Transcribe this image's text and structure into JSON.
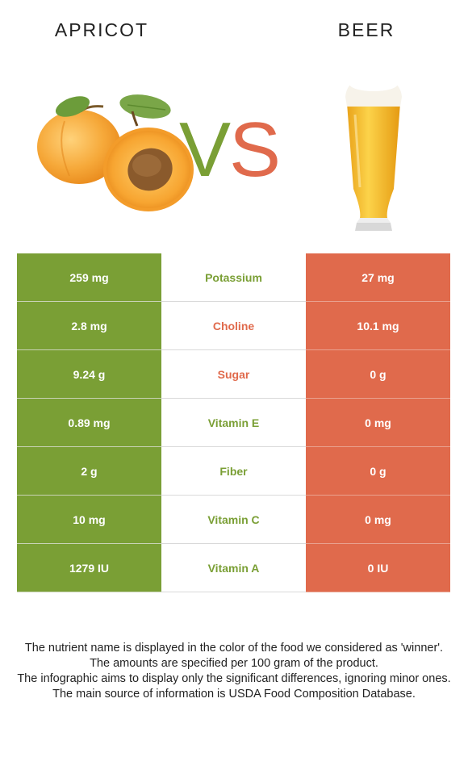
{
  "header": {
    "left_food": "APRICOT",
    "right_food": "BEER",
    "vs_left": "V",
    "vs_right": "S"
  },
  "colors": {
    "winner_left": "#7a9f35",
    "winner_right": "#e06a4c"
  },
  "rows": [
    {
      "left": "259 mg",
      "nutrient": "Potassium",
      "right": "27 mg",
      "winner": "left"
    },
    {
      "left": "2.8 mg",
      "nutrient": "Choline",
      "right": "10.1 mg",
      "winner": "right"
    },
    {
      "left": "9.24 g",
      "nutrient": "Sugar",
      "right": "0 g",
      "winner": "right"
    },
    {
      "left": "0.89 mg",
      "nutrient": "Vitamin E",
      "right": "0 mg",
      "winner": "left"
    },
    {
      "left": "2 g",
      "nutrient": "Fiber",
      "right": "0 g",
      "winner": "left"
    },
    {
      "left": "10 mg",
      "nutrient": "Vitamin C",
      "right": "0 mg",
      "winner": "left"
    },
    {
      "left": "1279 IU",
      "nutrient": "Vitamin A",
      "right": "0 IU",
      "winner": "left"
    }
  ],
  "footnotes": [
    "The nutrient name is displayed in the color of the food we considered as 'winner'.",
    "The amounts are specified per 100 gram of the product.",
    "The infographic aims to display only the significant differences, ignoring minor ones.",
    "The main source of information is USDA Food Composition Database."
  ],
  "images": {
    "left": "apricot-image",
    "right": "beer-glass-image"
  }
}
